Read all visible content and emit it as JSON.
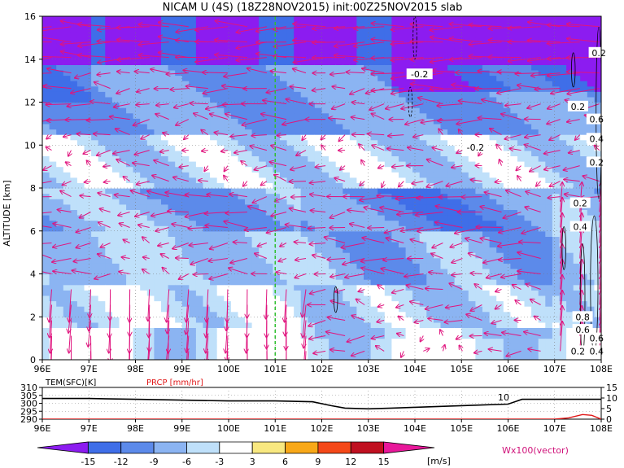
{
  "title": "NICAM U (4S) (18Z28NOV2015) init:00Z25NOV2015 slab",
  "colors": {
    "vector": "#e0147e",
    "marker_line": "#2fbf2f",
    "temp_line": "#000000",
    "prcp_line": "#e01818"
  },
  "chart_data": [
    {
      "type": "heatmap",
      "name": "main-cross-section",
      "ylabel": "ALTITUDE [km]",
      "x_ticks": [
        "96E",
        "97E",
        "98E",
        "99E",
        "100E",
        "101E",
        "102E",
        "103E",
        "104E",
        "105E",
        "106E",
        "107E",
        "108E"
      ],
      "x_range": [
        96,
        108
      ],
      "y_ticks": [
        "0",
        "2",
        "4",
        "6",
        "8",
        "10",
        "12",
        "14",
        "16"
      ],
      "y_range": [
        0,
        16
      ],
      "marker_lon": 101,
      "contour_labels": [
        {
          "text": "0.2",
          "lon": 107.95,
          "alt": 14.3
        },
        {
          "text": "-0.2",
          "lon": 104.1,
          "alt": 13.3
        },
        {
          "text": "0.2",
          "lon": 107.5,
          "alt": 11.8
        },
        {
          "text": "0.6",
          "lon": 107.9,
          "alt": 11.2
        },
        {
          "text": "0.4",
          "lon": 107.9,
          "alt": 10.3
        },
        {
          "text": "-0.2",
          "lon": 105.3,
          "alt": 9.9
        },
        {
          "text": "0.2",
          "lon": 107.9,
          "alt": 9.2
        },
        {
          "text": "0.2",
          "lon": 107.55,
          "alt": 7.3
        },
        {
          "text": "0.4",
          "lon": 107.55,
          "alt": 6.2
        },
        {
          "text": "0.8",
          "lon": 107.6,
          "alt": 2.0
        },
        {
          "text": "0.6",
          "lon": 107.6,
          "alt": 1.4
        },
        {
          "text": "0.6",
          "lon": 107.9,
          "alt": 1.0
        },
        {
          "text": "0.2",
          "lon": 107.5,
          "alt": 0.4
        },
        {
          "text": "0.4",
          "lon": 107.9,
          "alt": 0.4
        }
      ]
    },
    {
      "type": "line",
      "name": "surface-panel",
      "series": [
        {
          "name": "TEM(SFC)[K]",
          "x": [
            96,
            97,
            98,
            99,
            100,
            101,
            101.8,
            102.2,
            102.5,
            103,
            103.5,
            104,
            104.5,
            105,
            105.5,
            106,
            106.3,
            107,
            108
          ],
          "values": [
            303,
            303,
            302.5,
            302,
            301.5,
            301.5,
            301,
            298.5,
            297,
            296.5,
            297,
            297.5,
            298,
            298.5,
            299,
            299.5,
            302.5,
            302.5,
            302.5
          ]
        },
        {
          "name": "PRCP [mm/hr]",
          "x": [
            96,
            100,
            104,
            106,
            107,
            107.3,
            107.6,
            107.8,
            108
          ],
          "values": [
            0,
            0,
            0,
            0,
            0,
            0.6,
            2.2,
            1.8,
            0
          ]
        }
      ],
      "left_ticks": [
        "290",
        "295",
        "300",
        "305",
        "310"
      ],
      "left_range": [
        290,
        310
      ],
      "right_ticks": [
        "0",
        "5",
        "10",
        "15"
      ],
      "right_range": [
        0,
        15
      ],
      "x_ticks": [
        "96E",
        "97E",
        "98E",
        "99E",
        "100E",
        "101E",
        "102E",
        "103E",
        "104E",
        "105E",
        "106E",
        "107E",
        "108E"
      ],
      "annotation": "10"
    },
    {
      "type": "colorbar",
      "name": "u-colorbar",
      "tick_labels": [
        "-15",
        "-12",
        "-9",
        "-6",
        "-3",
        "3",
        "6",
        "9",
        "12",
        "15"
      ],
      "colors": [
        "#8c1cf0",
        "#3f6ee8",
        "#5c8aea",
        "#8bb4f2",
        "#bfe0fa",
        "#ffffff",
        "#f8e880",
        "#f8a818",
        "#f44818",
        "#c01020",
        "#e8189a"
      ],
      "unit": "[m/s]",
      "vector_label": "Wx100(vector)"
    }
  ]
}
